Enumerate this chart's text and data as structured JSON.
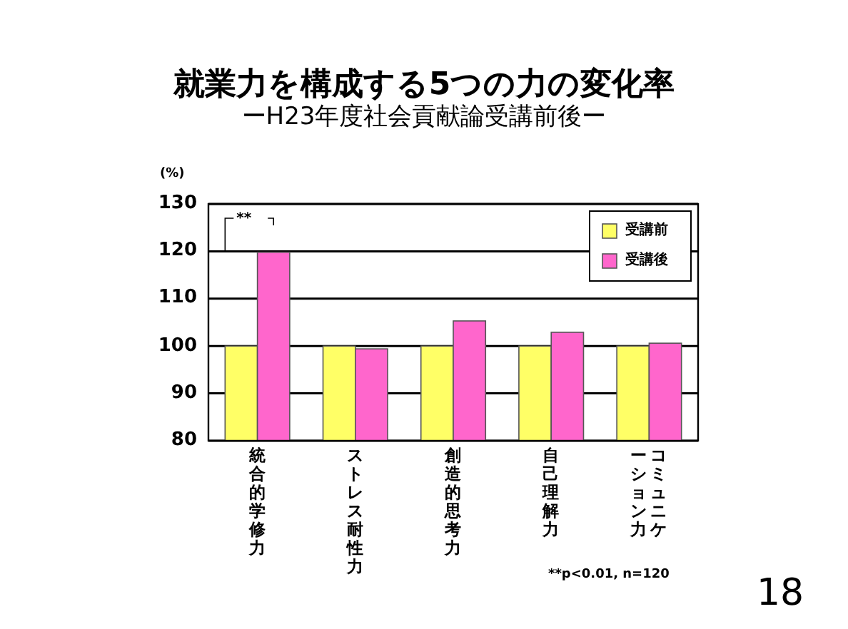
{
  "chart_data": {
    "type": "bar",
    "title": "就業力を構成する5つの力の変化率",
    "subtitle": "ーH23年度社会貢献論受講前後ー",
    "ylabel": "(%)",
    "categories": [
      "統合的学修力",
      "ストレス耐性力",
      "創造的思考力",
      "自己理解力",
      "コミュニケーション力"
    ],
    "series": [
      {
        "name": "受講前",
        "color": "#ffff66",
        "values": [
          100,
          100,
          100,
          100,
          100
        ]
      },
      {
        "name": "受講後",
        "color": "#ff66cc",
        "values": [
          119.8,
          99.4,
          105.3,
          102.9,
          100.6
        ]
      }
    ],
    "ylim": [
      80,
      130
    ],
    "yticks": [
      80,
      90,
      100,
      110,
      120,
      130
    ],
    "grid": "y",
    "legend": "top right",
    "annotations": [
      "**",
      "**p<0.01, n=120",
      "18"
    ]
  }
}
